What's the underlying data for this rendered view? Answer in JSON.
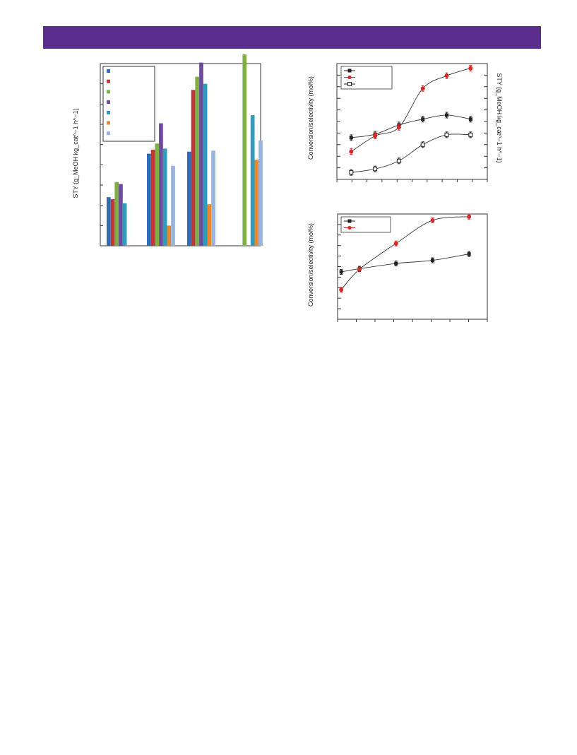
{
  "header": {
    "band_color": "#5a2d8f"
  },
  "chart_data": [
    {
      "type": "bar",
      "ylabel": "STY (g_MeOH kg_cat^−1 h^−1)",
      "ylim": [
        0,
        9
      ],
      "grid": false,
      "legend_placement": "top-left",
      "groups": 4,
      "series": [
        {
          "color": "#2e6cb6",
          "values": [
            2.4,
            4.55,
            4.65,
            null
          ]
        },
        {
          "color": "#c0373a",
          "values": [
            2.3,
            4.75,
            7.7,
            null
          ]
        },
        {
          "color": "#7fae45",
          "values": [
            3.15,
            5.05,
            8.35,
            9.45
          ]
        },
        {
          "color": "#6d4d9b",
          "values": [
            3.05,
            6.05,
            9.05,
            null
          ]
        },
        {
          "color": "#2f9bbd",
          "values": [
            2.1,
            4.8,
            8.0,
            6.45
          ]
        },
        {
          "color": "#e8892c",
          "values": [
            null,
            1.0,
            2.05,
            4.25
          ]
        },
        {
          "color": "#98b4dc",
          "values": [
            null,
            3.95,
            4.7,
            5.2
          ]
        }
      ]
    },
    {
      "type": "line",
      "ylabel": "Conversion/selectivity (mol%)",
      "ylabel_right": "STY (g_MeOH kg_cat^−1 h^−1)",
      "grid": false,
      "legend_placement": "top-left",
      "x": [
        1,
        2,
        3,
        4,
        5,
        6
      ],
      "xlim": [
        0.4,
        6.7
      ],
      "ylim": [
        0,
        10
      ],
      "series": [
        {
          "marker": "filled-square",
          "color": "#222222",
          "values": [
            3.6,
            3.9,
            4.7,
            5.2,
            5.55,
            5.2
          ]
        },
        {
          "marker": "filled-circle",
          "color": "#d42a2a",
          "values": [
            2.4,
            3.75,
            4.5,
            7.85,
            8.95,
            9.6
          ]
        },
        {
          "marker": "open-square",
          "color": "#222222",
          "values": [
            0.6,
            0.9,
            1.6,
            3.0,
            3.85,
            3.85
          ]
        }
      ]
    },
    {
      "type": "line",
      "ylabel": "Conversion/selectivity (mol%)",
      "grid": false,
      "legend_placement": "top-left",
      "x": [
        0,
        1,
        3,
        5,
        7
      ],
      "xlim": [
        -0.2,
        8
      ],
      "ylim": [
        0,
        10
      ],
      "series": [
        {
          "marker": "filled-square",
          "color": "#222222",
          "values": [
            4.5,
            4.8,
            5.3,
            5.6,
            6.2
          ]
        },
        {
          "marker": "filled-circle",
          "color": "#d42a2a",
          "values": [
            2.8,
            4.75,
            7.2,
            9.4,
            9.75
          ]
        }
      ]
    }
  ]
}
